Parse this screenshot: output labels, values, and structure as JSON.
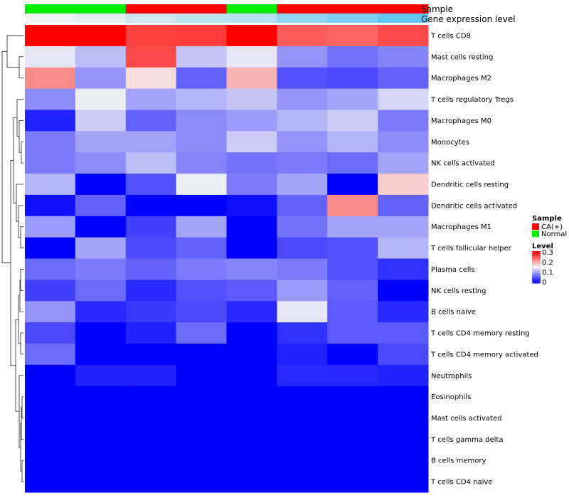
{
  "chart_data": {
    "type": "heatmap",
    "title": "",
    "annotation_titles": {
      "sample": "Sample",
      "expression": "Gene expression level"
    },
    "columns": [
      {
        "sample": "Normal",
        "expression": 0.02
      },
      {
        "sample": "Normal",
        "expression": 0.08
      },
      {
        "sample": "CA(+)",
        "expression": 0.22
      },
      {
        "sample": "CA(+)",
        "expression": 0.35
      },
      {
        "sample": "Normal",
        "expression": 0.38
      },
      {
        "sample": "CA(+)",
        "expression": 0.62
      },
      {
        "sample": "CA(+)",
        "expression": 0.75
      },
      {
        "sample": "CA(+)",
        "expression": 0.9
      }
    ],
    "rows": [
      "T cells CD8",
      "Mast cells resting",
      "Macrophages M2",
      "T cells regulatory  Tregs",
      "Macrophages M0",
      "Monocytes",
      "NK cells activated",
      "Dendritic cells resting",
      "Dendritic cells activated",
      "Macrophages M1",
      "T cells follicular helper",
      "Plasma cells",
      "NK cells resting",
      "B cells naive",
      "T cells CD4 memory resting",
      "T cells CD4 memory activated",
      "Neutrophils",
      "Eosinophils",
      "Mast cells activated",
      "T cells gamma delta",
      "B cells memory",
      "T cells CD4 naive"
    ],
    "values": [
      [
        0.3,
        0.3,
        0.26,
        0.265,
        0.3,
        0.245,
        0.24,
        0.255
      ],
      [
        0.14,
        0.115,
        0.255,
        0.12,
        0.14,
        0.09,
        0.07,
        0.08
      ],
      [
        0.215,
        0.09,
        0.165,
        0.06,
        0.19,
        0.05,
        0.045,
        0.06
      ],
      [
        0.085,
        0.145,
        0.1,
        0.11,
        0.12,
        0.09,
        0.1,
        0.13
      ],
      [
        0.02,
        0.125,
        0.06,
        0.085,
        0.095,
        0.11,
        0.125,
        0.075
      ],
      [
        0.075,
        0.1,
        0.1,
        0.085,
        0.125,
        0.09,
        0.11,
        0.085
      ],
      [
        0.075,
        0.085,
        0.115,
        0.08,
        0.07,
        0.075,
        0.065,
        0.1
      ],
      [
        0.11,
        0.0,
        0.05,
        0.145,
        0.075,
        0.1,
        0.0,
        0.175
      ],
      [
        0.01,
        0.06,
        0.0,
        0.0,
        0.01,
        0.06,
        0.215,
        0.06
      ],
      [
        0.095,
        0.0,
        0.04,
        0.1,
        0.0,
        0.07,
        0.1,
        0.1
      ],
      [
        0.0,
        0.1,
        0.045,
        0.06,
        0.0,
        0.045,
        0.05,
        0.11
      ],
      [
        0.065,
        0.075,
        0.06,
        0.075,
        0.08,
        0.075,
        0.05,
        0.03
      ],
      [
        0.04,
        0.065,
        0.025,
        0.05,
        0.055,
        0.095,
        0.06,
        0.0
      ],
      [
        0.09,
        0.025,
        0.035,
        0.045,
        0.025,
        0.14,
        0.055,
        0.025
      ],
      [
        0.045,
        0.0,
        0.02,
        0.065,
        0.0,
        0.03,
        0.055,
        0.055
      ],
      [
        0.065,
        0.0,
        0.0,
        0.0,
        0.0,
        0.02,
        0.0,
        0.045
      ],
      [
        0.0,
        0.02,
        0.02,
        0.0,
        0.0,
        0.025,
        0.025,
        0.02
      ],
      [
        0.0,
        0.0,
        0.0,
        0.0,
        0.0,
        0.0,
        0.0,
        0.0
      ],
      [
        0.0,
        0.0,
        0.0,
        0.0,
        0.0,
        0.0,
        0.0,
        0.0
      ],
      [
        0.0,
        0.0,
        0.0,
        0.0,
        0.0,
        0.0,
        0.0,
        0.0
      ],
      [
        0.0,
        0.0,
        0.0,
        0.0,
        0.0,
        0.0,
        0.0,
        0.0
      ],
      [
        0.0,
        0.0,
        0.0,
        0.0,
        0.0,
        0.0,
        0.0,
        0.0
      ]
    ],
    "color_scale": {
      "min": 0,
      "mid": 0.15,
      "max": 0.3,
      "low_color": "#0000ff",
      "mid_color": "#f5f5f5",
      "high_color": "#ff0000"
    },
    "legend": {
      "sample_title": "Sample",
      "sample_entries": [
        {
          "label": "CA(+)",
          "color": "#ff0000"
        },
        {
          "label": "Normal",
          "color": "#00ee00"
        }
      ],
      "level_title": "Level",
      "level_ticks": [
        0.3,
        0.2,
        0.1,
        0
      ],
      "level_tick_labels": [
        "0.3",
        "0.2",
        "0.1",
        "0"
      ]
    },
    "expression_colors": {
      "low": "#f2f2f2",
      "high": "#4fc3f0"
    },
    "row_dendrogram": true
  }
}
